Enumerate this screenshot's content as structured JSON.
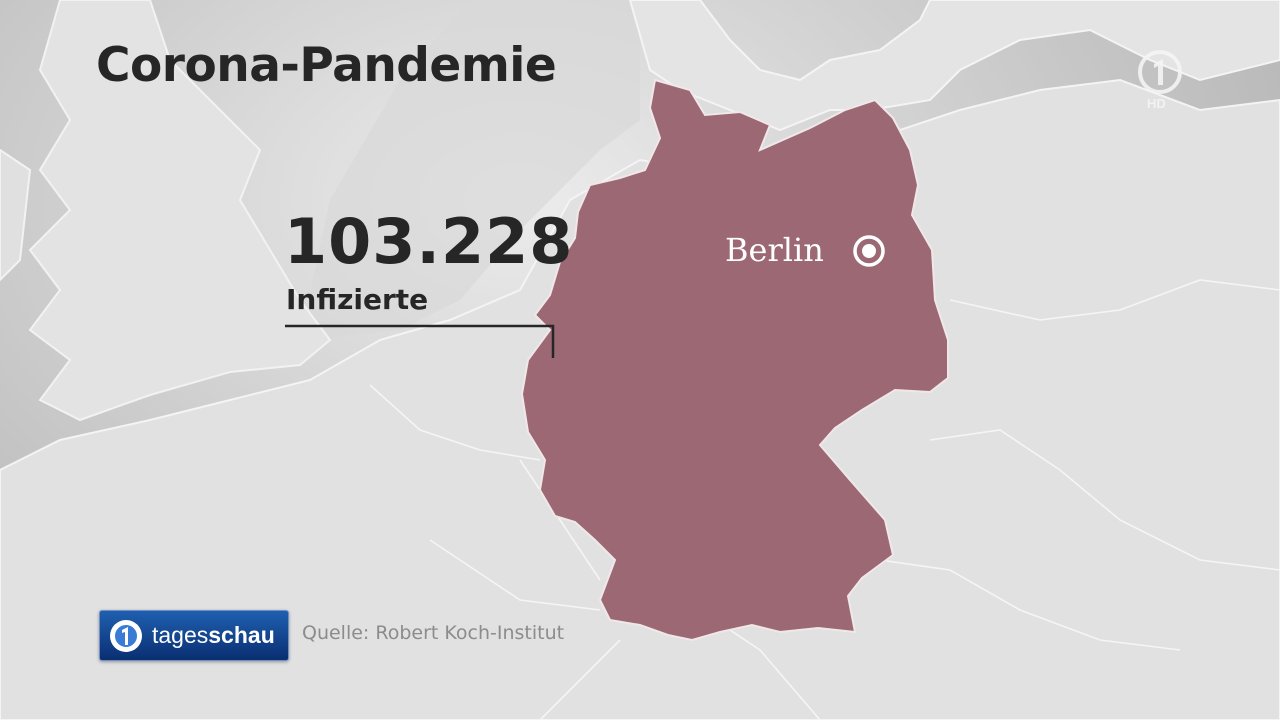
{
  "graphic": {
    "title": "Corona-Pandemie",
    "value": "103.228",
    "value_label": "Infizierte",
    "source": "Quelle: Robert Koch-Institut"
  },
  "map": {
    "highlighted_country": "Germany",
    "city_label": "Berlin",
    "colors": {
      "highlight": "#9b6873",
      "land": "#e2e2e2",
      "sea": "#c6c6c6",
      "borders": "#f4f4f4"
    }
  },
  "brand": {
    "name_light": "tages",
    "name_bold": "schau"
  },
  "broadcaster": {
    "logo_icon": "das-erste-logo-icon",
    "hd_badge": "HD"
  }
}
